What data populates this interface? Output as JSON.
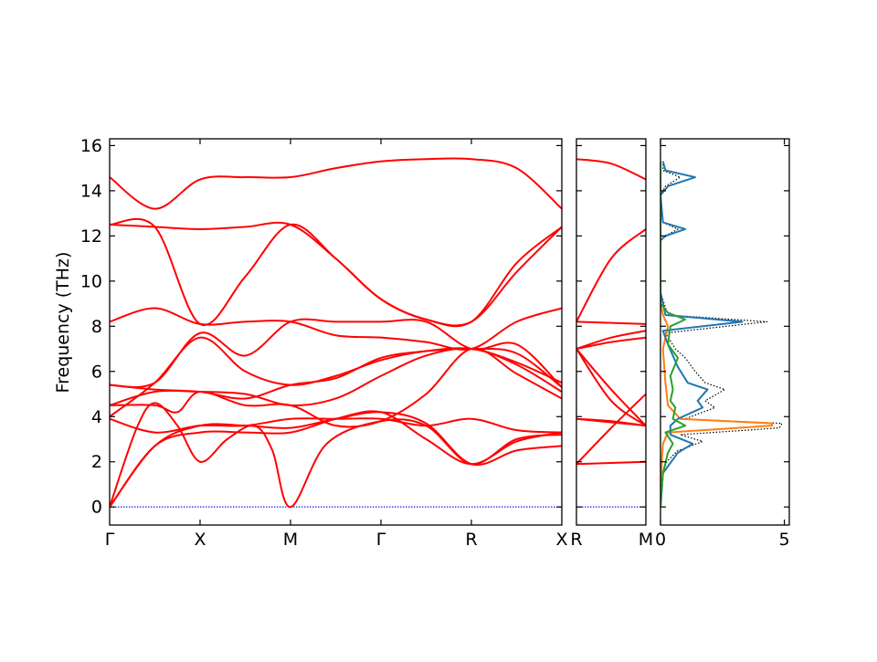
{
  "chart_data": [
    {
      "type": "line",
      "subtype": "phonon-band-structure",
      "ylabel": "Frequency (THz)",
      "ylim": [
        -0.8,
        16.3
      ],
      "yticks": [
        0,
        2,
        4,
        6,
        8,
        10,
        12,
        14,
        16
      ],
      "ytick_labels": [
        "0",
        "2",
        "4",
        "6",
        "8",
        "10",
        "12",
        "14",
        "16"
      ],
      "segment_labels": [
        "Γ",
        "X",
        "M",
        "Γ",
        "R",
        "X"
      ],
      "line_color": "#ff0000",
      "zero_line_color": "#0000ff",
      "nodes": [
        {
          "path": [
            [
              0,
              0
            ],
            [
              0.5,
              2.7
            ],
            [
              1,
              3.3
            ],
            [
              1.5,
              3.3
            ],
            [
              2,
              3.3
            ],
            [
              2.5,
              3.9
            ],
            [
              3,
              4.2
            ],
            [
              3.5,
              3.0
            ],
            [
              4,
              1.9
            ],
            [
              4.5,
              2.9
            ],
            [
              5,
              3.3
            ]
          ]
        },
        {
          "path": [
            [
              0,
              0
            ],
            [
              0.5,
              2.7
            ],
            [
              1,
              3.6
            ],
            [
              1.5,
              3.6
            ],
            [
              2,
              3.5
            ],
            [
              2.5,
              3.9
            ],
            [
              3,
              4.2
            ],
            [
              3.5,
              3.7
            ],
            [
              4,
              1.9
            ],
            [
              4.5,
              2.5
            ],
            [
              5,
              2.7
            ]
          ]
        },
        {
          "path": [
            [
              0,
              0
            ],
            [
              0.3,
              3.5
            ],
            [
              0.5,
              4.6
            ],
            [
              0.75,
              3.6
            ],
            [
              1,
              2.0
            ],
            [
              1.3,
              3.0
            ],
            [
              1.6,
              3.6
            ],
            [
              1.8,
              2.5
            ],
            [
              2,
              0
            ],
            [
              2.4,
              2.8
            ],
            [
              3,
              3.8
            ],
            [
              3.5,
              3.6
            ],
            [
              4,
              1.9
            ],
            [
              4.5,
              3.0
            ],
            [
              5,
              3.2
            ]
          ]
        },
        {
          "path": [
            [
              0,
              3.9
            ],
            [
              0.5,
              3.3
            ],
            [
              1,
              3.6
            ],
            [
              1.5,
              3.6
            ],
            [
              2,
              3.9
            ],
            [
              2.5,
              3.9
            ],
            [
              3,
              3.9
            ],
            [
              3.5,
              3.6
            ],
            [
              4,
              3.9
            ],
            [
              4.5,
              3.4
            ],
            [
              5,
              3.3
            ]
          ]
        },
        {
          "path": [
            [
              0,
              4.5
            ],
            [
              0.5,
              4.5
            ],
            [
              0.75,
              4.2
            ],
            [
              1,
              5.1
            ],
            [
              1.5,
              4.5
            ],
            [
              2,
              4.5
            ],
            [
              2.5,
              3.6
            ],
            [
              3,
              3.8
            ],
            [
              3.5,
              5.0
            ],
            [
              4,
              7.0
            ],
            [
              4.5,
              5.9
            ],
            [
              5,
              4.8
            ]
          ]
        },
        {
          "path": [
            [
              0,
              4.5
            ],
            [
              0.5,
              5.1
            ],
            [
              1,
              5.1
            ],
            [
              1.5,
              5.0
            ],
            [
              2,
              4.5
            ],
            [
              2.5,
              4.8
            ],
            [
              3,
              5.8
            ],
            [
              3.5,
              6.7
            ],
            [
              4,
              7.0
            ],
            [
              4.5,
              6.3
            ],
            [
              5,
              5.1
            ]
          ]
        },
        {
          "path": [
            [
              0,
              5.4
            ],
            [
              0.5,
              5.2
            ],
            [
              1,
              5.1
            ],
            [
              1.5,
              4.8
            ],
            [
              2,
              5.4
            ],
            [
              2.5,
              5.7
            ],
            [
              3,
              6.6
            ],
            [
              3.5,
              6.9
            ],
            [
              4,
              7.0
            ],
            [
              4.5,
              6.8
            ],
            [
              5,
              5.3
            ]
          ]
        },
        {
          "path": [
            [
              0,
              4.0
            ],
            [
              0.5,
              5.5
            ],
            [
              1,
              7.5
            ],
            [
              1.5,
              6.0
            ],
            [
              2,
              5.4
            ],
            [
              2.5,
              5.8
            ],
            [
              3,
              6.5
            ],
            [
              3.5,
              6.9
            ],
            [
              4,
              7.0
            ],
            [
              4.5,
              6.4
            ],
            [
              5,
              5.5
            ]
          ]
        },
        {
          "path": [
            [
              0,
              5.4
            ],
            [
              0.5,
              5.5
            ],
            [
              1,
              7.7
            ],
            [
              1.5,
              6.7
            ],
            [
              2,
              8.2
            ],
            [
              2.5,
              8.2
            ],
            [
              3,
              8.2
            ],
            [
              3.5,
              8.2
            ],
            [
              4,
              7.0
            ],
            [
              4.5,
              7.2
            ],
            [
              5,
              5.3
            ]
          ]
        },
        {
          "path": [
            [
              0,
              8.2
            ],
            [
              0.5,
              8.8
            ],
            [
              1,
              8.1
            ],
            [
              1.5,
              8.2
            ],
            [
              2,
              8.2
            ],
            [
              2.5,
              7.6
            ],
            [
              3,
              7.5
            ],
            [
              3.5,
              7.3
            ],
            [
              4,
              7.0
            ],
            [
              4.5,
              8.2
            ],
            [
              5,
              8.8
            ]
          ]
        },
        {
          "path": [
            [
              0,
              12.5
            ],
            [
              0.5,
              12.4
            ],
            [
              1,
              8.1
            ],
            [
              1.5,
              10.2
            ],
            [
              2,
              12.5
            ],
            [
              2.5,
              11.0
            ],
            [
              3,
              9.2
            ],
            [
              3.5,
              8.3
            ],
            [
              4,
              8.2
            ],
            [
              4.5,
              10.4
            ],
            [
              5,
              12.4
            ]
          ]
        },
        {
          "path": [
            [
              0,
              12.5
            ],
            [
              0.5,
              12.4
            ],
            [
              1,
              12.3
            ],
            [
              1.5,
              12.4
            ],
            [
              2,
              12.5
            ],
            [
              2.5,
              11.0
            ],
            [
              3,
              9.2
            ],
            [
              3.5,
              8.3
            ],
            [
              4,
              8.2
            ],
            [
              4.5,
              10.8
            ],
            [
              5,
              12.4
            ]
          ]
        },
        {
          "path": [
            [
              0,
              14.6
            ],
            [
              0.5,
              13.2
            ],
            [
              1,
              14.5
            ],
            [
              1.5,
              14.6
            ],
            [
              2,
              14.6
            ],
            [
              2.5,
              15.0
            ],
            [
              3,
              15.3
            ],
            [
              3.5,
              15.4
            ],
            [
              4,
              15.4
            ],
            [
              4.5,
              15.0
            ],
            [
              5,
              13.2
            ]
          ]
        }
      ]
    },
    {
      "type": "line",
      "subtype": "phonon-band-structure",
      "segment_labels": [
        "R",
        "M"
      ],
      "xlim": [
        0,
        1
      ],
      "line_color": "#ff0000",
      "zero_line_color": "#0000ff",
      "bands": [
        [
          [
            0,
            1.9
          ],
          [
            1,
            2.0
          ]
        ],
        [
          [
            0,
            1.9
          ],
          [
            0.5,
            3.5
          ],
          [
            1,
            5.0
          ]
        ],
        [
          [
            0,
            3.9
          ],
          [
            1,
            3.6
          ]
        ],
        [
          [
            0,
            3.9
          ],
          [
            0.5,
            3.8
          ],
          [
            1,
            3.6
          ]
        ],
        [
          [
            0,
            7.0
          ],
          [
            0.5,
            5.2
          ],
          [
            1,
            3.6
          ]
        ],
        [
          [
            0,
            7.0
          ],
          [
            0.5,
            4.7
          ],
          [
            1,
            3.6
          ]
        ],
        [
          [
            0,
            7.0
          ],
          [
            0.5,
            7.3
          ],
          [
            1,
            7.5
          ]
        ],
        [
          [
            0,
            7.0
          ],
          [
            0.5,
            7.5
          ],
          [
            1,
            7.8
          ]
        ],
        [
          [
            0,
            8.2
          ],
          [
            1,
            8.1
          ]
        ],
        [
          [
            0,
            8.2
          ],
          [
            0.5,
            11.0
          ],
          [
            1,
            12.3
          ]
        ],
        [
          [
            0,
            15.4
          ],
          [
            0.5,
            15.2
          ],
          [
            1,
            14.5
          ]
        ]
      ]
    },
    {
      "type": "line",
      "subtype": "partial-density-of-states",
      "xlim": [
        0,
        5.2
      ],
      "xticks": [
        0,
        5
      ],
      "xtick_labels": [
        "0",
        "5"
      ],
      "ylim": [
        -0.8,
        16.3
      ],
      "series": [
        {
          "color": "#000000",
          "style": "dotted",
          "values": [
            [
              0,
              0
            ],
            [
              0.1,
              1.5
            ],
            [
              0.25,
              2.0
            ],
            [
              0.7,
              2.5
            ],
            [
              1.0,
              2.6
            ],
            [
              1.7,
              2.9
            ],
            [
              0.8,
              3.2
            ],
            [
              4.8,
              3.5
            ],
            [
              4.9,
              3.7
            ],
            [
              1.0,
              3.9
            ],
            [
              2.2,
              4.4
            ],
            [
              1.8,
              4.7
            ],
            [
              2.6,
              5.2
            ],
            [
              1.8,
              5.5
            ],
            [
              1.4,
              6.0
            ],
            [
              1.0,
              6.6
            ],
            [
              0.6,
              7.0
            ],
            [
              0.2,
              7.7
            ],
            [
              4.3,
              8.2
            ],
            [
              0.3,
              8.5
            ],
            [
              0,
              9.5
            ],
            [
              0,
              11.8
            ],
            [
              0.2,
              12.0
            ],
            [
              0.7,
              12.3
            ],
            [
              0.1,
              12.6
            ],
            [
              0,
              13.8
            ],
            [
              0.2,
              14.2
            ],
            [
              0.8,
              14.6
            ],
            [
              0.1,
              14.9
            ],
            [
              0.1,
              15.3
            ]
          ]
        },
        {
          "color": "#ff7f0e",
          "values": [
            [
              0,
              0
            ],
            [
              0.05,
              2.0
            ],
            [
              0.1,
              2.8
            ],
            [
              0.3,
              3.3
            ],
            [
              4.5,
              3.6
            ],
            [
              4.5,
              3.7
            ],
            [
              0.8,
              3.9
            ],
            [
              0.3,
              4.5
            ],
            [
              0.2,
              5.5
            ],
            [
              0.1,
              7.0
            ],
            [
              0.3,
              8.0
            ],
            [
              0.1,
              8.5
            ],
            [
              0,
              9.0
            ],
            [
              0,
              15.3
            ]
          ]
        },
        {
          "color": "#1f77b4",
          "values": [
            [
              0,
              0
            ],
            [
              0.1,
              1.5
            ],
            [
              0.7,
              2.4
            ],
            [
              1.3,
              2.8
            ],
            [
              0.4,
              3.2
            ],
            [
              0.4,
              3.6
            ],
            [
              0.7,
              3.9
            ],
            [
              1.7,
              4.4
            ],
            [
              1.5,
              4.7
            ],
            [
              1.9,
              5.2
            ],
            [
              1.1,
              5.5
            ],
            [
              0.7,
              6.2
            ],
            [
              0.3,
              7.2
            ],
            [
              0.1,
              7.8
            ],
            [
              3.3,
              8.2
            ],
            [
              0.2,
              8.5
            ],
            [
              0,
              9.5
            ],
            [
              0,
              11.8
            ],
            [
              0.2,
              12.0
            ],
            [
              1.0,
              12.3
            ],
            [
              0.1,
              12.6
            ],
            [
              0,
              13.8
            ],
            [
              0.3,
              14.2
            ],
            [
              1.4,
              14.6
            ],
            [
              0.2,
              14.9
            ],
            [
              0.1,
              15.3
            ]
          ]
        },
        {
          "color": "#2ca02c",
          "values": [
            [
              0,
              0
            ],
            [
              0.1,
              1.5
            ],
            [
              0.3,
              2.4
            ],
            [
              0.5,
              2.8
            ],
            [
              0.2,
              3.3
            ],
            [
              1.0,
              3.6
            ],
            [
              0.5,
              3.9
            ],
            [
              0.6,
              4.4
            ],
            [
              0.4,
              4.7
            ],
            [
              0.5,
              5.2
            ],
            [
              0.4,
              5.8
            ],
            [
              0.7,
              6.6
            ],
            [
              0.3,
              7.2
            ],
            [
              0.4,
              8.0
            ],
            [
              1.0,
              8.3
            ],
            [
              0.3,
              8.6
            ],
            [
              0,
              9.0
            ],
            [
              0,
              15.3
            ]
          ]
        }
      ]
    }
  ]
}
